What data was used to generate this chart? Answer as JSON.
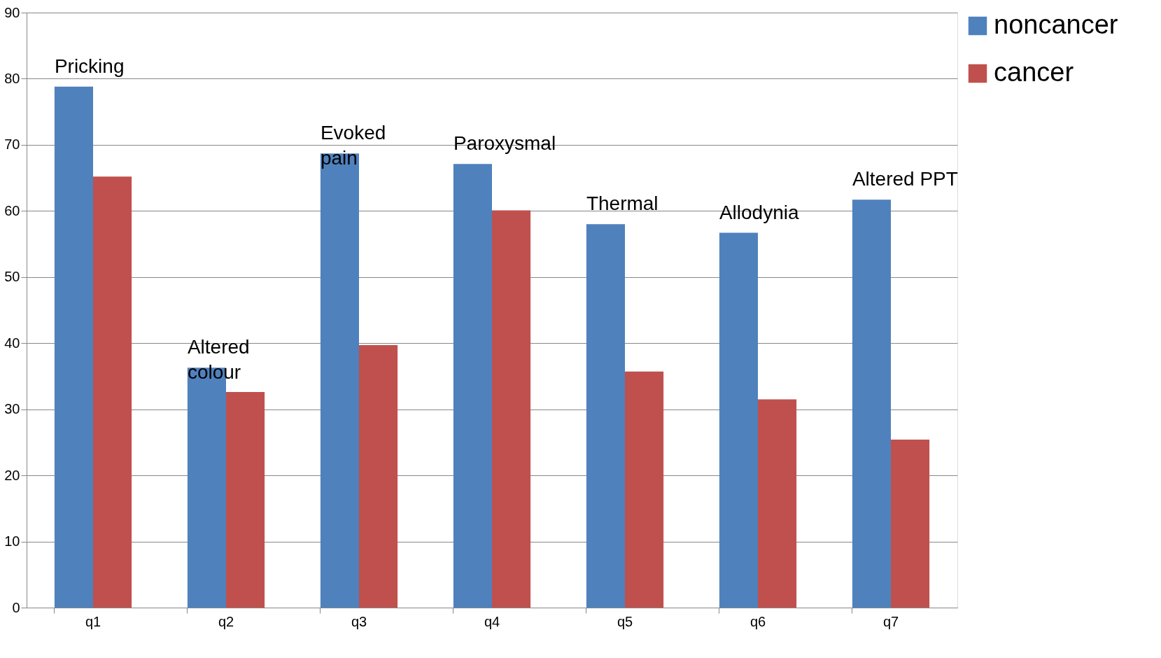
{
  "chart_data": {
    "type": "bar",
    "categories": [
      "q1",
      "q2",
      "q3",
      "q4",
      "q5",
      "q6",
      "q7"
    ],
    "series": [
      {
        "name": "noncancer",
        "color": "#4f81bd",
        "values": [
          78.8,
          36.3,
          68.7,
          67.1,
          58.0,
          56.7,
          61.7
        ]
      },
      {
        "name": "cancer",
        "color": "#c0504d",
        "values": [
          65.2,
          32.6,
          39.7,
          60.1,
          35.7,
          31.5,
          25.4
        ]
      }
    ],
    "annotations": [
      "Pricking",
      "Altered\ncolour",
      "Evoked\npain",
      "Paroxysmal",
      "Thermal",
      "Allodynia",
      "Altered PPT"
    ],
    "ylim": [
      0,
      90
    ],
    "yticks": [
      0,
      10,
      20,
      30,
      40,
      50,
      60,
      70,
      80,
      90
    ],
    "grid": "y",
    "legend": "top right"
  }
}
